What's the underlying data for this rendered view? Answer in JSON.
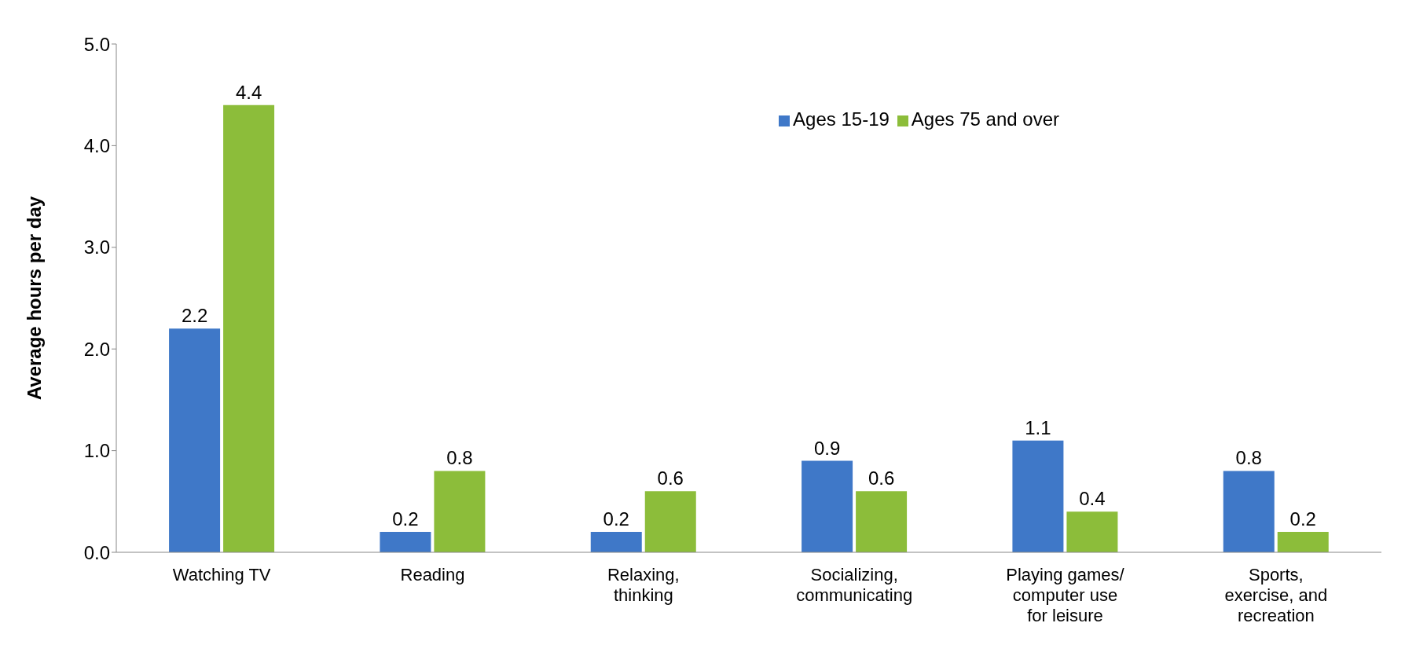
{
  "chart_data": {
    "type": "bar",
    "ylabel": "Average hours per day",
    "categories": [
      "Watching TV",
      "Reading",
      "Relaxing, thinking",
      "Socializing, communicating",
      "Playing games/ computer use for leisure",
      "Sports, exercise, and recreation"
    ],
    "series": [
      {
        "name": "Ages 15-19",
        "color": "#3f78c8",
        "values": [
          2.2,
          0.2,
          0.2,
          0.9,
          1.1,
          0.8
        ]
      },
      {
        "name": "Ages 75 and over",
        "color": "#8cbd3a",
        "values": [
          4.4,
          0.8,
          0.6,
          0.6,
          0.4,
          0.2
        ]
      }
    ],
    "ylim": [
      0,
      5
    ],
    "yticks": [
      {
        "value": 0,
        "label": "0.0"
      },
      {
        "value": 1,
        "label": "1.0"
      },
      {
        "value": 2,
        "label": "2.0"
      },
      {
        "value": 3,
        "label": "3.0"
      },
      {
        "value": 4,
        "label": "4.0"
      },
      {
        "value": 5,
        "label": "5.0"
      }
    ],
    "data_labels": true,
    "legend": "top right",
    "grid": false
  }
}
